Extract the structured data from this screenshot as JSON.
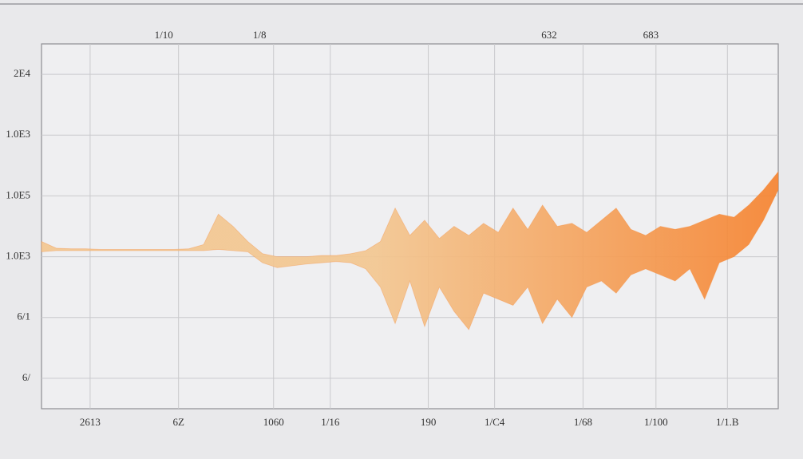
{
  "chart_data": {
    "type": "band",
    "xlim": [
      0,
      100
    ],
    "ylim": [
      0,
      6
    ],
    "xticks": [
      {
        "value": 6.6,
        "label": "2613"
      },
      {
        "value": 18.6,
        "label": "6Z"
      },
      {
        "value": 31.5,
        "label": "1060"
      },
      {
        "value": 39.2,
        "label": "1/16"
      },
      {
        "value": 52.5,
        "label": "190"
      },
      {
        "value": 61.5,
        "label": "1/C4"
      },
      {
        "value": 73.5,
        "label": "1/68"
      },
      {
        "value": 83.4,
        "label": "1/100"
      },
      {
        "value": 93.1,
        "label": "1/1.B"
      }
    ],
    "yticks": [
      {
        "value": 0.5,
        "label": "6/"
      },
      {
        "value": 1.5,
        "label": "6/1"
      },
      {
        "value": 2.5,
        "label": "1.0E3"
      },
      {
        "value": 3.5,
        "label": "1.0E5"
      },
      {
        "value": 4.5,
        "label": "1.0E3"
      },
      {
        "value": 5.5,
        "label": "2E4"
      }
    ],
    "annotations": [
      {
        "text": "1/10",
        "x": 16.6
      },
      {
        "text": "1/8",
        "x": 29.6
      },
      {
        "text": "632",
        "x": 68.9
      },
      {
        "text": "683",
        "x": 82.7
      }
    ],
    "grid": true,
    "colors": [
      "#f3c68f",
      "#f6812c"
    ],
    "x": [
      0,
      2,
      4,
      6,
      8,
      10,
      12,
      14,
      16,
      18,
      20,
      22,
      24,
      26,
      28,
      30,
      32,
      34,
      36,
      38,
      40,
      42,
      44,
      46,
      48,
      50,
      52,
      54,
      56,
      58,
      60,
      62,
      64,
      66,
      68,
      70,
      72,
      74,
      76,
      78,
      80,
      82,
      84,
      86,
      88,
      90,
      92,
      94,
      96,
      98,
      100
    ],
    "high": [
      2.75,
      2.64,
      2.63,
      2.63,
      2.62,
      2.62,
      2.62,
      2.62,
      2.62,
      2.62,
      2.63,
      2.7,
      3.2,
      3.0,
      2.75,
      2.55,
      2.5,
      2.5,
      2.5,
      2.52,
      2.52,
      2.55,
      2.6,
      2.75,
      3.3,
      2.85,
      3.1,
      2.8,
      3.0,
      2.85,
      3.05,
      2.9,
      3.3,
      2.95,
      3.35,
      3.0,
      3.05,
      2.9,
      3.1,
      3.3,
      2.95,
      2.85,
      3.0,
      2.95,
      3.0,
      3.1,
      3.2,
      3.15,
      3.35,
      3.6,
      3.9
    ],
    "low": [
      2.58,
      2.6,
      2.6,
      2.6,
      2.6,
      2.6,
      2.6,
      2.6,
      2.6,
      2.6,
      2.6,
      2.6,
      2.62,
      2.6,
      2.58,
      2.4,
      2.32,
      2.35,
      2.38,
      2.4,
      2.42,
      2.4,
      2.3,
      2.0,
      1.4,
      2.1,
      1.35,
      2.0,
      1.6,
      1.3,
      1.9,
      1.8,
      1.7,
      2.0,
      1.4,
      1.8,
      1.5,
      2.0,
      2.1,
      1.9,
      2.2,
      2.3,
      2.2,
      2.1,
      2.3,
      1.8,
      2.4,
      2.5,
      2.7,
      3.1,
      3.6
    ]
  }
}
